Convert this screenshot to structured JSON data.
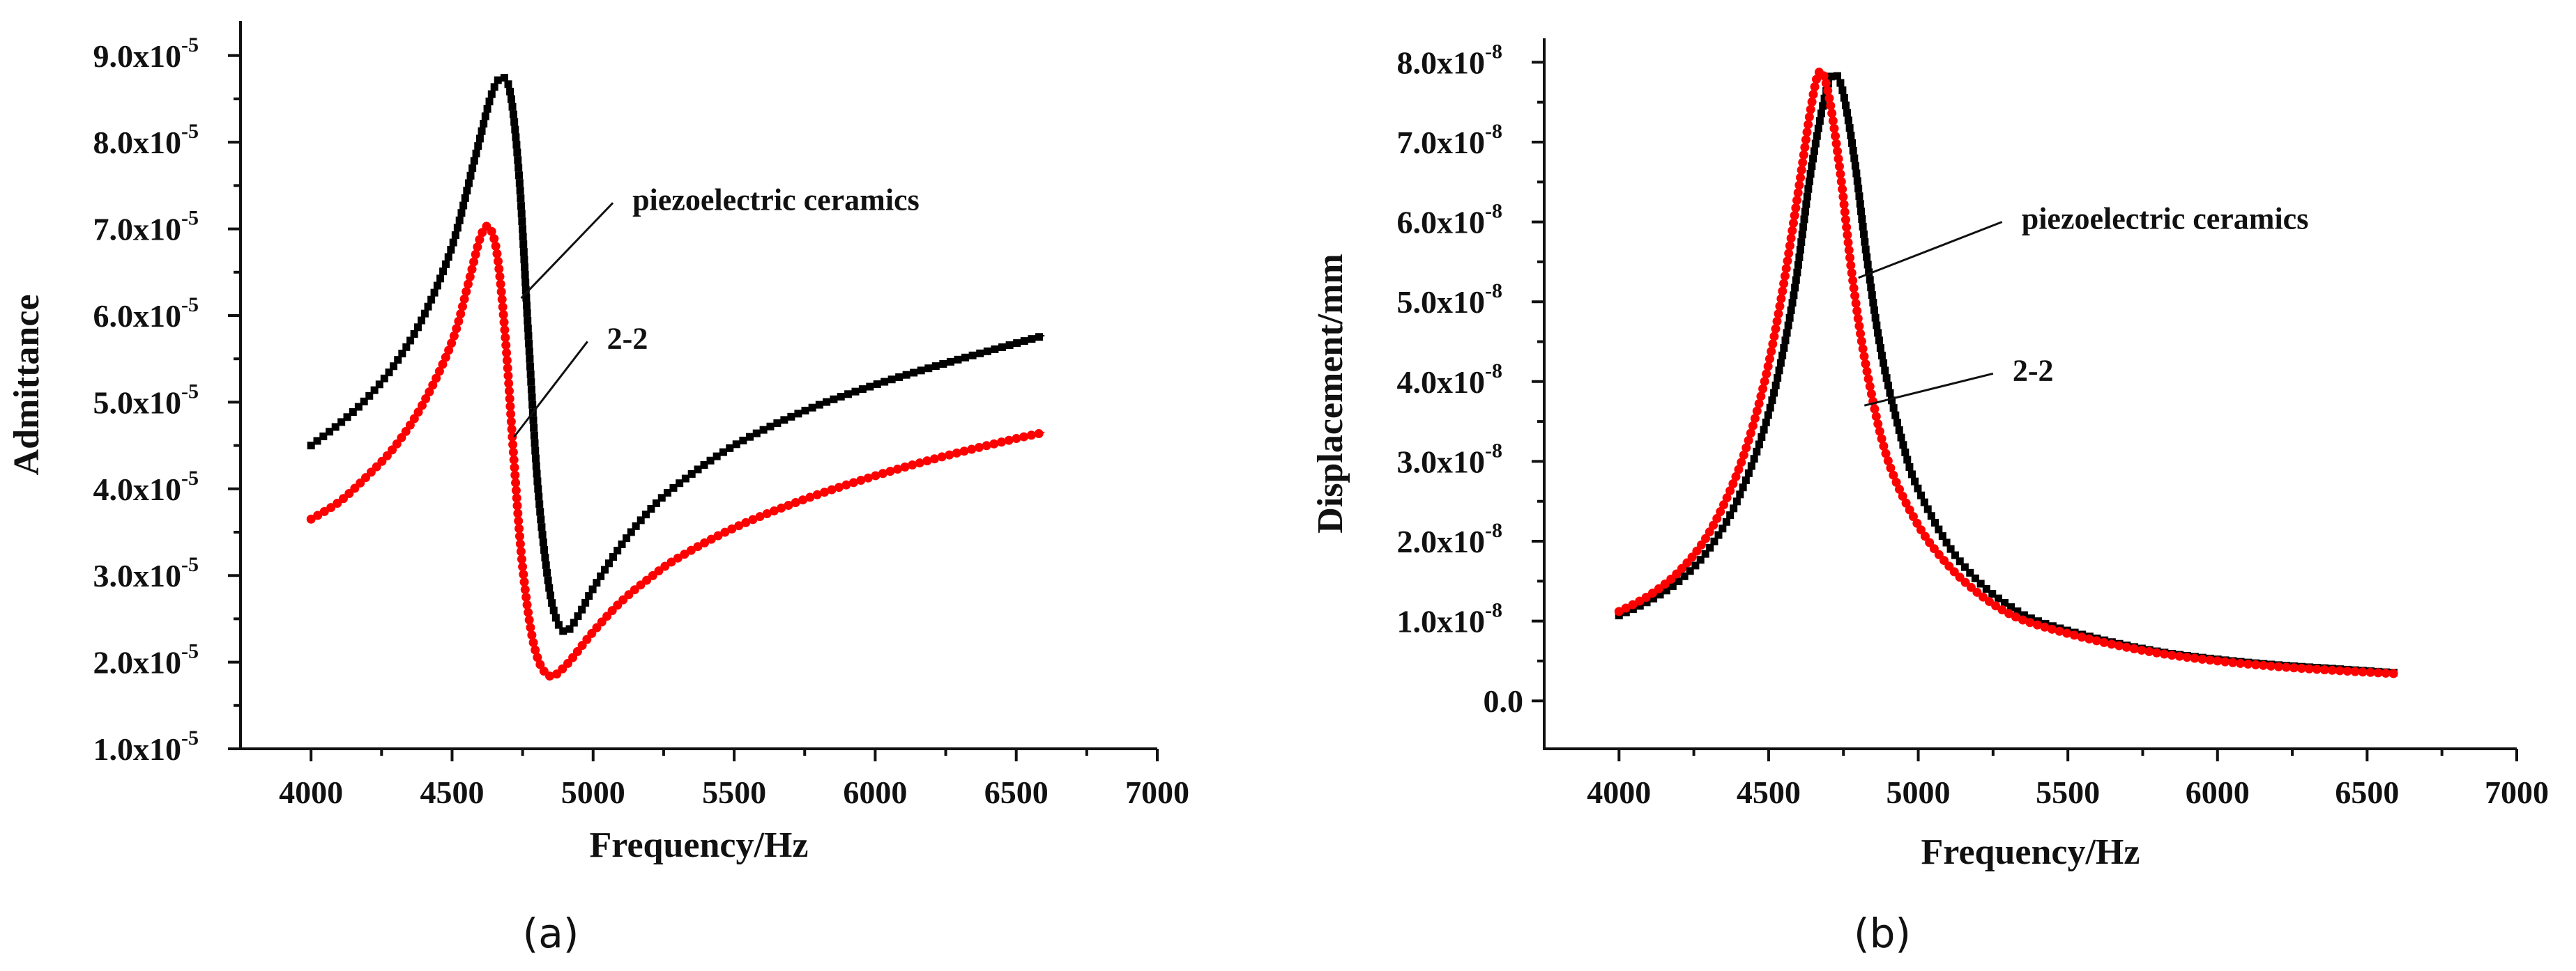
{
  "chart_data": [
    {
      "type": "scatter",
      "panel_label": "(a)",
      "xlabel": "Frequency/Hz",
      "ylabel": "Admittance",
      "xlim": [
        3750,
        7000
      ],
      "ylim": [
        1e-05,
        9.4e-05
      ],
      "xticks": [
        {
          "value": 4000,
          "label": "4000"
        },
        {
          "value": 4500,
          "label": "4500"
        },
        {
          "value": 5000,
          "label": "5000"
        },
        {
          "value": 5500,
          "label": "5500"
        },
        {
          "value": 6000,
          "label": "6000"
        },
        {
          "value": 6500,
          "label": "6500"
        },
        {
          "value": 7000,
          "label": "7000"
        }
      ],
      "yticks": [
        {
          "value": 1e-05,
          "mantissa": "1.0x10",
          "exp": "-5"
        },
        {
          "value": 2e-05,
          "mantissa": "2.0x10",
          "exp": "-5"
        },
        {
          "value": 3e-05,
          "mantissa": "3.0x10",
          "exp": "-5"
        },
        {
          "value": 4e-05,
          "mantissa": "4.0x10",
          "exp": "-5"
        },
        {
          "value": 5e-05,
          "mantissa": "5.0x10",
          "exp": "-5"
        },
        {
          "value": 6e-05,
          "mantissa": "6.0x10",
          "exp": "-5"
        },
        {
          "value": 7e-05,
          "mantissa": "7.0x10",
          "exp": "-5"
        },
        {
          "value": 8e-05,
          "mantissa": "8.0x10",
          "exp": "-5"
        },
        {
          "value": 9e-05,
          "mantissa": "9.0x10",
          "exp": "-5"
        }
      ],
      "series": [
        {
          "name": "piezoelectric ceramics",
          "color": "#000000",
          "marker": "square",
          "points": [
            [
              4000,
              4.5e-05
            ],
            [
              4100,
              4.75e-05
            ],
            [
              4200,
              5.05e-05
            ],
            [
              4300,
              5.45e-05
            ],
            [
              4400,
              6e-05
            ],
            [
              4500,
              6.8e-05
            ],
            [
              4580,
              7.8e-05
            ],
            [
              4640,
              8.55e-05
            ],
            [
              4680,
              8.75e-05
            ],
            [
              4710,
              8.5e-05
            ],
            [
              4740,
              7.5e-05
            ],
            [
              4770,
              5.8e-05
            ],
            [
              4800,
              4.2e-05
            ],
            [
              4830,
              3.2e-05
            ],
            [
              4860,
              2.6e-05
            ],
            [
              4900,
              2.35e-05
            ],
            [
              4950,
              2.55e-05
            ],
            [
              5000,
              2.85e-05
            ],
            [
              5100,
              3.35e-05
            ],
            [
              5200,
              3.75e-05
            ],
            [
              5300,
              4.05e-05
            ],
            [
              5500,
              4.5e-05
            ],
            [
              5750,
              4.9e-05
            ],
            [
              6000,
              5.2e-05
            ],
            [
              6250,
              5.45e-05
            ],
            [
              6500,
              5.68e-05
            ],
            [
              6600,
              5.77e-05
            ]
          ]
        },
        {
          "name": "2-2",
          "color": "#ff0000",
          "marker": "circle",
          "points": [
            [
              4000,
              3.65e-05
            ],
            [
              4100,
              3.85e-05
            ],
            [
              4200,
              4.15e-05
            ],
            [
              4300,
              4.5e-05
            ],
            [
              4400,
              5e-05
            ],
            [
              4500,
              5.7e-05
            ],
            [
              4560,
              6.4e-05
            ],
            [
              4600,
              6.9e-05
            ],
            [
              4630,
              7.02e-05
            ],
            [
              4660,
              6.7e-05
            ],
            [
              4690,
              5.7e-05
            ],
            [
              4720,
              4.3e-05
            ],
            [
              4750,
              3.1e-05
            ],
            [
              4790,
              2.2e-05
            ],
            [
              4840,
              1.85e-05
            ],
            [
              4900,
              1.95e-05
            ],
            [
              5000,
              2.35e-05
            ],
            [
              5100,
              2.7e-05
            ],
            [
              5200,
              2.97e-05
            ],
            [
              5300,
              3.2e-05
            ],
            [
              5500,
              3.55e-05
            ],
            [
              5750,
              3.88e-05
            ],
            [
              6000,
              4.15e-05
            ],
            [
              6250,
              4.38e-05
            ],
            [
              6500,
              4.58e-05
            ],
            [
              6600,
              4.65e-05
            ]
          ]
        }
      ],
      "annotations": [
        {
          "text": "piezoelectric ceramics",
          "target": [
            4745,
            6.2e-05
          ],
          "anchor": [
            5070,
            7.3e-05
          ]
        },
        {
          "text": "2-2",
          "target": [
            4720,
            4.6e-05
          ],
          "anchor": [
            4980,
            5.7e-05
          ]
        }
      ]
    },
    {
      "type": "scatter",
      "panel_label": "(b)",
      "xlabel": "Frequency/Hz",
      "ylabel": "Displacement/mm",
      "xlim": [
        3750,
        7000
      ],
      "ylim": [
        -6e-09,
        8.3e-08
      ],
      "xticks": [
        {
          "value": 4000,
          "label": "4000"
        },
        {
          "value": 4500,
          "label": "4500"
        },
        {
          "value": 5000,
          "label": "5000"
        },
        {
          "value": 5500,
          "label": "5500"
        },
        {
          "value": 6000,
          "label": "6000"
        },
        {
          "value": 6500,
          "label": "6500"
        },
        {
          "value": 7000,
          "label": "7000"
        }
      ],
      "yticks": [
        {
          "value": 0.0,
          "mantissa": "0.0",
          "exp": ""
        },
        {
          "value": 1e-08,
          "mantissa": "1.0x10",
          "exp": "-8"
        },
        {
          "value": 2e-08,
          "mantissa": "2.0x10",
          "exp": "-8"
        },
        {
          "value": 3e-08,
          "mantissa": "3.0x10",
          "exp": "-8"
        },
        {
          "value": 4e-08,
          "mantissa": "4.0x10",
          "exp": "-8"
        },
        {
          "value": 5e-08,
          "mantissa": "5.0x10",
          "exp": "-8"
        },
        {
          "value": 6e-08,
          "mantissa": "6.0x10",
          "exp": "-8"
        },
        {
          "value": 7e-08,
          "mantissa": "7.0x10",
          "exp": "-8"
        },
        {
          "value": 8e-08,
          "mantissa": "8.0x10",
          "exp": "-8"
        }
      ],
      "series": [
        {
          "name": "piezoelectric ceramics",
          "color": "#000000",
          "marker": "square",
          "points": [
            [
              4000,
              1.07e-08
            ],
            [
              4100,
              1.25e-08
            ],
            [
              4200,
              1.5e-08
            ],
            [
              4300,
              1.9e-08
            ],
            [
              4400,
              2.55e-08
            ],
            [
              4500,
              3.6e-08
            ],
            [
              4580,
              5e-08
            ],
            [
              4640,
              6.6e-08
            ],
            [
              4690,
              7.6e-08
            ],
            [
              4720,
              7.85e-08
            ],
            [
              4750,
              7.6e-08
            ],
            [
              4790,
              6.7e-08
            ],
            [
              4830,
              5.5e-08
            ],
            [
              4880,
              4.3e-08
            ],
            [
              4950,
              3.2e-08
            ],
            [
              5000,
              2.65e-08
            ],
            [
              5100,
              1.95e-08
            ],
            [
              5200,
              1.5e-08
            ],
            [
              5300,
              1.2e-08
            ],
            [
              5400,
              1e-08
            ],
            [
              5600,
              7.8e-09
            ],
            [
              5800,
              6.2e-09
            ],
            [
              6000,
              5.2e-09
            ],
            [
              6200,
              4.5e-09
            ],
            [
              6400,
              4e-09
            ],
            [
              6600,
              3.5e-09
            ]
          ]
        },
        {
          "name": "2-2",
          "color": "#ff0000",
          "marker": "circle",
          "points": [
            [
              4000,
              1.12e-08
            ],
            [
              4100,
              1.32e-08
            ],
            [
              4200,
              1.62e-08
            ],
            [
              4300,
              2.1e-08
            ],
            [
              4400,
              2.9e-08
            ],
            [
              4480,
              3.9e-08
            ],
            [
              4540,
              5e-08
            ],
            [
              4600,
              6.4e-08
            ],
            [
              4640,
              7.4e-08
            ],
            [
              4670,
              7.88e-08
            ],
            [
              4700,
              7.6e-08
            ],
            [
              4740,
              6.6e-08
            ],
            [
              4780,
              5.3e-08
            ],
            [
              4830,
              4.1e-08
            ],
            [
              4900,
              3e-08
            ],
            [
              5000,
              2.2e-08
            ],
            [
              5100,
              1.7e-08
            ],
            [
              5200,
              1.35e-08
            ],
            [
              5300,
              1.1e-08
            ],
            [
              5400,
              9.5e-09
            ],
            [
              5600,
              7.5e-09
            ],
            [
              5800,
              6e-09
            ],
            [
              6000,
              5e-09
            ],
            [
              6200,
              4.3e-09
            ],
            [
              6400,
              3.8e-09
            ],
            [
              6600,
              3.4e-09
            ]
          ]
        }
      ],
      "annotations": [
        {
          "text": "piezoelectric ceramics",
          "target": [
            4800,
            5.3e-08
          ],
          "anchor": [
            5280,
            6e-08
          ]
        },
        {
          "text": "2-2",
          "target": [
            4820,
            3.7e-08
          ],
          "anchor": [
            5250,
            4.1e-08
          ]
        }
      ]
    }
  ]
}
